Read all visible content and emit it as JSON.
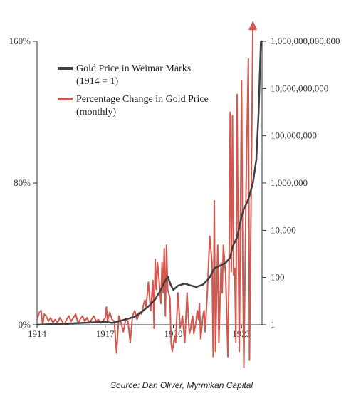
{
  "chart_data": {
    "type": "line",
    "title": "",
    "source": "Source: Dan Oliver, Myrmikan Capital",
    "legend": {
      "placement": "top-left",
      "entries": [
        {
          "series": "gold_marks",
          "lines": [
            "Gold Price in Weimar Marks",
            "(1914 = 1)"
          ]
        },
        {
          "series": "pct_change",
          "lines": [
            "Percentage Change in Gold Price",
            "(monthly)"
          ]
        }
      ]
    },
    "x_axis": {
      "range": [
        1914.0,
        1923.9
      ],
      "ticks": [
        1914,
        1917,
        1920,
        1923
      ],
      "tick_labels": [
        "1914",
        "1917",
        "1920",
        "1923"
      ]
    },
    "y_left": {
      "range": [
        0,
        160
      ],
      "ticks": [
        0,
        80,
        160
      ],
      "tick_labels": [
        "0%",
        "80%",
        "160%"
      ],
      "unit": "percent"
    },
    "y_right": {
      "scale": "log",
      "range": [
        1,
        1000000000000
      ],
      "ticks": [
        1,
        100,
        10000,
        1000000,
        100000000,
        10000000000,
        1000000000000
      ],
      "tick_labels": [
        "1",
        "100",
        "10,000",
        "1,000,000",
        "100,000,000",
        "10,000,000,000",
        "1,000,000,000,000"
      ]
    },
    "grid": false,
    "colors": {
      "gold_marks": "#404040",
      "pct_change": "#d0584e",
      "axis": "#333333"
    },
    "series": [
      {
        "key": "gold_marks",
        "axis": "right",
        "color": "#404040",
        "points": [
          [
            1914.0,
            1
          ],
          [
            1915.0,
            1.1
          ],
          [
            1916.0,
            1.2
          ],
          [
            1917.0,
            1.35
          ],
          [
            1917.3,
            1.2
          ],
          [
            1917.7,
            1.5
          ],
          [
            1918.0,
            1.8
          ],
          [
            1918.3,
            2.2
          ],
          [
            1918.6,
            3.5
          ],
          [
            1918.9,
            6
          ],
          [
            1919.2,
            12
          ],
          [
            1919.4,
            25
          ],
          [
            1919.6,
            60
          ],
          [
            1919.75,
            110
          ],
          [
            1919.9,
            45
          ],
          [
            1920.0,
            30
          ],
          [
            1920.2,
            45
          ],
          [
            1920.5,
            55
          ],
          [
            1920.8,
            45
          ],
          [
            1921.0,
            40
          ],
          [
            1921.3,
            50
          ],
          [
            1921.6,
            100
          ],
          [
            1921.8,
            250
          ],
          [
            1922.0,
            300
          ],
          [
            1922.3,
            420
          ],
          [
            1922.5,
            700
          ],
          [
            1922.6,
            2000
          ],
          [
            1922.8,
            5000
          ],
          [
            1923.0,
            40000
          ],
          [
            1923.1,
            80000
          ],
          [
            1923.3,
            200000
          ],
          [
            1923.5,
            1000000
          ],
          [
            1923.65,
            10000000
          ],
          [
            1923.75,
            1000000000
          ],
          [
            1923.85,
            1000000000000
          ],
          [
            1923.9,
            1000000000000
          ]
        ]
      },
      {
        "key": "pct_change",
        "axis": "left",
        "color": "#d0584e",
        "arrow_at_end": true,
        "points": [
          [
            1914.0,
            3
          ],
          [
            1914.1,
            7
          ],
          [
            1914.18,
            8
          ],
          [
            1914.25,
            0
          ],
          [
            1914.32,
            6
          ],
          [
            1914.4,
            5
          ],
          [
            1914.5,
            2
          ],
          [
            1914.6,
            4
          ],
          [
            1914.7,
            1
          ],
          [
            1914.8,
            3
          ],
          [
            1914.9,
            1
          ],
          [
            1915.0,
            4
          ],
          [
            1915.1,
            2
          ],
          [
            1915.2,
            0
          ],
          [
            1915.3,
            3
          ],
          [
            1915.4,
            5
          ],
          [
            1915.5,
            2
          ],
          [
            1915.6,
            4
          ],
          [
            1915.7,
            6
          ],
          [
            1915.8,
            1
          ],
          [
            1915.9,
            3
          ],
          [
            1916.0,
            5
          ],
          [
            1916.1,
            2
          ],
          [
            1916.2,
            4
          ],
          [
            1916.3,
            1
          ],
          [
            1916.4,
            3
          ],
          [
            1916.5,
            5
          ],
          [
            1916.6,
            2
          ],
          [
            1916.7,
            3
          ],
          [
            1916.8,
            1
          ],
          [
            1916.9,
            2
          ],
          [
            1917.0,
            4
          ],
          [
            1917.05,
            10
          ],
          [
            1917.1,
            2
          ],
          [
            1917.2,
            7
          ],
          [
            1917.3,
            3
          ],
          [
            1917.4,
            2
          ],
          [
            1917.5,
            -16
          ],
          [
            1917.6,
            5
          ],
          [
            1917.7,
            1
          ],
          [
            1917.8,
            -4
          ],
          [
            1917.9,
            3
          ],
          [
            1918.0,
            2
          ],
          [
            1918.1,
            -10
          ],
          [
            1918.2,
            5
          ],
          [
            1918.3,
            8
          ],
          [
            1918.4,
            3
          ],
          [
            1918.5,
            7
          ],
          [
            1918.6,
            6
          ],
          [
            1918.7,
            12
          ],
          [
            1918.75,
            14
          ],
          [
            1918.8,
            10
          ],
          [
            1918.9,
            24
          ],
          [
            1919.0,
            8
          ],
          [
            1919.1,
            25
          ],
          [
            1919.15,
            -2
          ],
          [
            1919.2,
            37
          ],
          [
            1919.25,
            20
          ],
          [
            1919.3,
            35
          ],
          [
            1919.35,
            28
          ],
          [
            1919.45,
            12
          ],
          [
            1919.5,
            35
          ],
          [
            1919.55,
            18
          ],
          [
            1919.6,
            43
          ],
          [
            1919.65,
            5
          ],
          [
            1919.7,
            45
          ],
          [
            1919.75,
            20
          ],
          [
            1919.85,
            15
          ],
          [
            1919.9,
            -10
          ],
          [
            1919.95,
            -15
          ],
          [
            1920.05,
            -7
          ],
          [
            1920.1,
            -10
          ],
          [
            1920.2,
            18
          ],
          [
            1920.3,
            -2
          ],
          [
            1920.4,
            5
          ],
          [
            1920.5,
            -10
          ],
          [
            1920.6,
            18
          ],
          [
            1920.7,
            -5
          ],
          [
            1920.75,
            -3
          ],
          [
            1920.8,
            2
          ],
          [
            1920.85,
            5
          ],
          [
            1920.9,
            -5
          ],
          [
            1921.0,
            2
          ],
          [
            1921.05,
            8
          ],
          [
            1921.1,
            3
          ],
          [
            1921.15,
            12
          ],
          [
            1921.2,
            -8
          ],
          [
            1921.3,
            5
          ],
          [
            1921.35,
            8
          ],
          [
            1921.4,
            -4
          ],
          [
            1921.5,
            20
          ],
          [
            1921.6,
            50
          ],
          [
            1921.7,
            35
          ],
          [
            1921.75,
            -18
          ],
          [
            1921.8,
            70
          ],
          [
            1921.85,
            -15
          ],
          [
            1921.9,
            15
          ],
          [
            1921.95,
            45
          ],
          [
            1922.0,
            -10
          ],
          [
            1922.1,
            35
          ],
          [
            1922.15,
            18
          ],
          [
            1922.2,
            45
          ],
          [
            1922.3,
            28
          ],
          [
            1922.4,
            -18
          ],
          [
            1922.45,
            30
          ],
          [
            1922.5,
            120
          ],
          [
            1922.55,
            30
          ],
          [
            1922.6,
            118
          ],
          [
            1922.65,
            28
          ],
          [
            1922.7,
            32
          ],
          [
            1922.75,
            -10
          ],
          [
            1922.8,
            130
          ],
          [
            1922.85,
            50
          ],
          [
            1922.9,
            -15
          ],
          [
            1923.0,
            138
          ],
          [
            1923.05,
            35
          ],
          [
            1923.1,
            -24
          ],
          [
            1923.2,
            80
          ],
          [
            1923.3,
            150
          ],
          [
            1923.35,
            -20
          ],
          [
            1923.5,
            170
          ]
        ]
      }
    ]
  }
}
